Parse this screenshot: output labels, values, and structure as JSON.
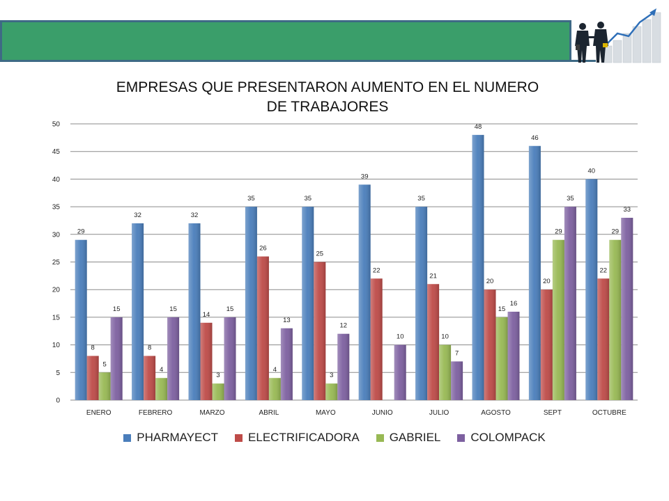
{
  "chart_data": {
    "type": "bar",
    "title": "EMPRESAS QUE  PRESENTARON AUMENTO EN EL NUMERO DE TRABAJORES",
    "title_lines": [
      "EMPRESAS QUE  PRESENTARON AUMENTO EN EL NUMERO",
      "DE TRABAJORES"
    ],
    "categories": [
      "ENERO",
      "FEBRERO",
      "MARZO",
      "ABRIL",
      "MAYO",
      "JUNIO",
      "JULIO",
      "AGOSTO",
      "SEPT",
      "OCTUBRE"
    ],
    "series": [
      {
        "name": "PHARMAYECT",
        "color": "#4a7ebb",
        "values": [
          29,
          32,
          32,
          35,
          35,
          39,
          35,
          48,
          46,
          40
        ]
      },
      {
        "name": "ELECTRIFICADORA",
        "color": "#be4b48",
        "values": [
          8,
          8,
          14,
          26,
          25,
          22,
          21,
          20,
          20,
          22
        ]
      },
      {
        "name": "GABRIEL",
        "color": "#98b954",
        "values": [
          5,
          4,
          3,
          4,
          3,
          null,
          10,
          15,
          29,
          29
        ]
      },
      {
        "name": "COLOMPACK",
        "color": "#7d60a0",
        "values": [
          15,
          15,
          15,
          13,
          12,
          10,
          7,
          16,
          35,
          33
        ]
      }
    ],
    "ylim": [
      0,
      50
    ],
    "yticks": [
      0,
      5,
      10,
      15,
      20,
      25,
      30,
      35,
      40,
      45,
      50
    ],
    "grid": true,
    "legend_position": "bottom",
    "xlabel": "",
    "ylabel": ""
  },
  "logo": {
    "icon": "business-growth-icon"
  }
}
